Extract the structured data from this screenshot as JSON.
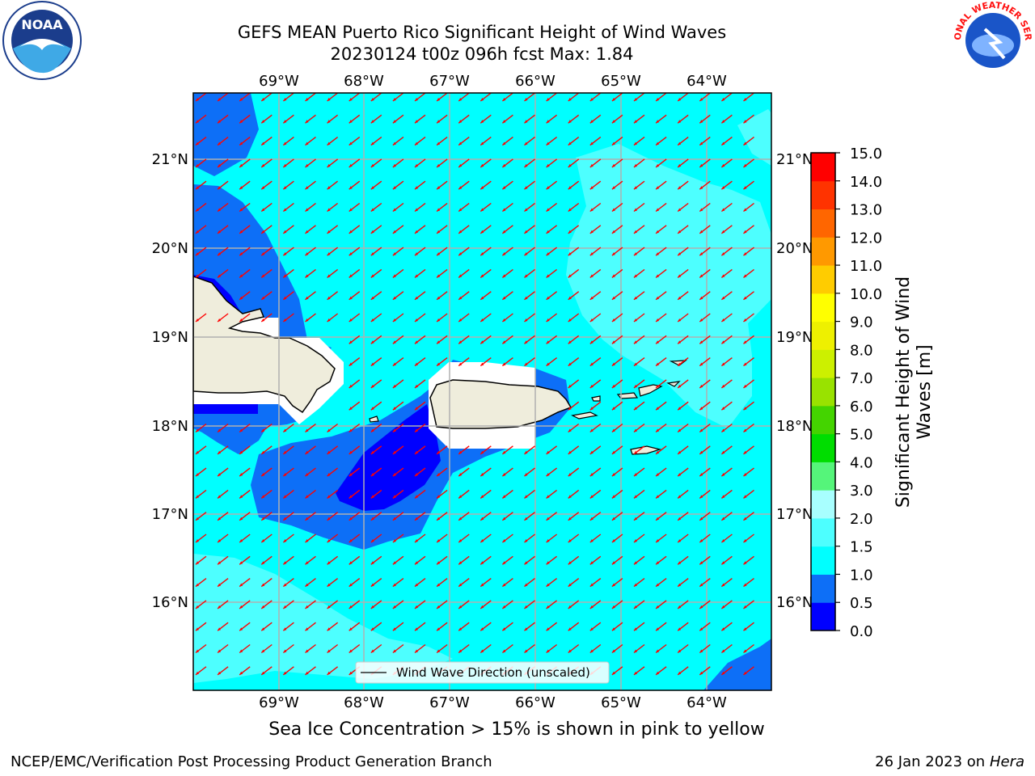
{
  "header": {
    "title_line1": "GEFS MEAN Puerto Rico Significant Height of Wind Waves",
    "title_line2": "20230124 t00z 096h fcst   Max: 1.84"
  },
  "logos": {
    "left": {
      "icon": "noaa-logo",
      "text": "NOAA"
    },
    "right": {
      "icon": "national-weather-service-logo",
      "text": "NATIONAL WEATHER SERVICE"
    }
  },
  "map": {
    "lon_labels": [
      "69°W",
      "68°W",
      "67°W",
      "66°W",
      "65°W",
      "64°W"
    ],
    "lat_labels": [
      "21°N",
      "20°N",
      "19°N",
      "18°N",
      "17°N",
      "16°N"
    ],
    "legend_label": "Wind Wave Direction (unscaled)",
    "colors": {
      "band_0_0_5": "#0000ff",
      "band_0_5_1": "#0d6ff7",
      "band_1_1_5": "#00ffff",
      "band_1_5_2": "#4dffff",
      "land": "#efeddc",
      "arrow": "#ff0000",
      "grid": "#b0b0b0"
    }
  },
  "colorbar": {
    "label": "Significant Height of Wind Waves [m]",
    "ticks": [
      "0.0",
      "0.5",
      "1.0",
      "1.5",
      "2.0",
      "3.0",
      "4.0",
      "5.0",
      "6.0",
      "7.0",
      "8.0",
      "9.0",
      "10.0",
      "11.0",
      "12.0",
      "13.0",
      "14.0",
      "15.0"
    ],
    "colors": [
      "#0000ff",
      "#0d6ff7",
      "#00ffff",
      "#4dffff",
      "#a8ffff",
      "#55f57a",
      "#00dd00",
      "#44d400",
      "#99e200",
      "#ccf000",
      "#eef000",
      "#ffff00",
      "#ffcc00",
      "#ff9900",
      "#ff6600",
      "#ff3300",
      "#ff0000"
    ]
  },
  "notes": {
    "sea_ice": "Sea Ice Concentration > 15% is shown in pink to yellow",
    "credit": "NCEP/EMC/Verification Post Processing Product Generation Branch",
    "date": "26 Jan 2023 on ",
    "machine": "Hera"
  }
}
